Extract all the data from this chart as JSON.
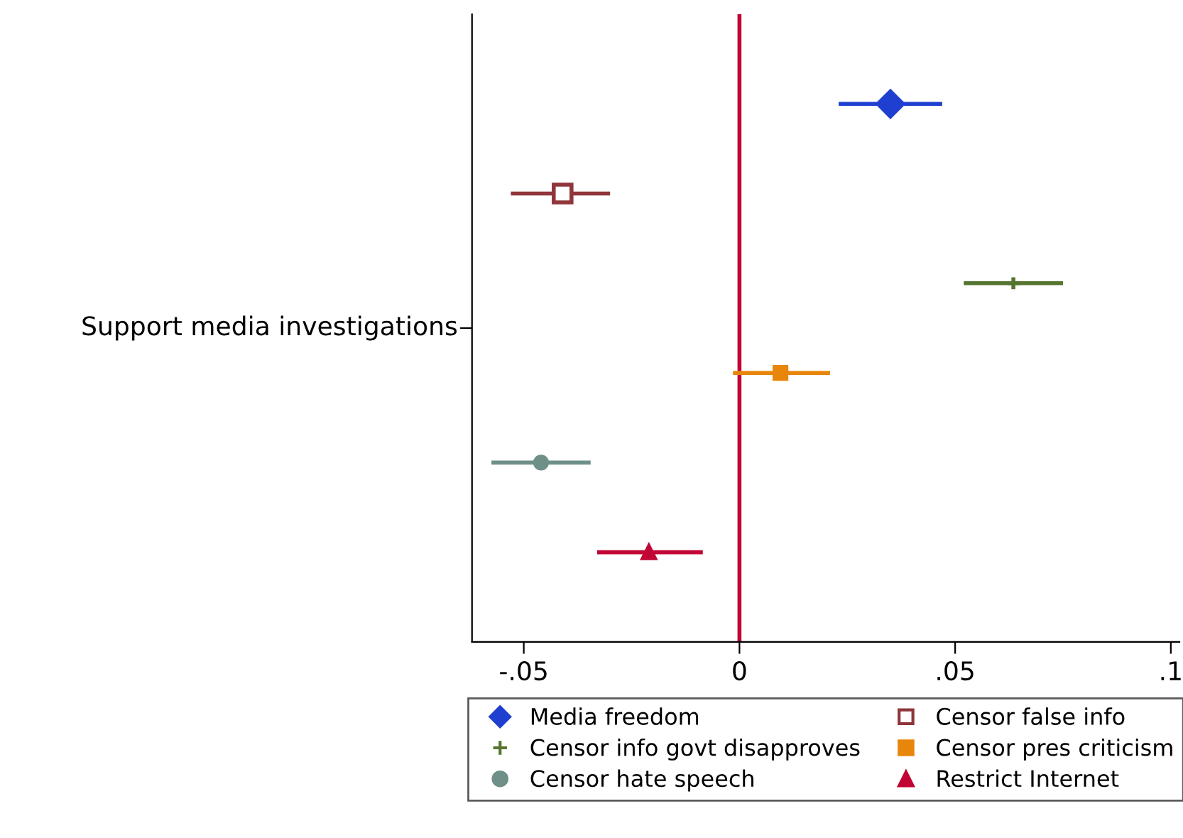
{
  "chart_data": {
    "type": "scatter",
    "orientation": "horizontal",
    "categories": [
      null,
      null,
      null,
      null,
      null,
      null
    ],
    "ylabel": "Support media investigations",
    "series": [
      {
        "name": "Media freedom",
        "color": "#1f3fd0",
        "marker": "diamond",
        "values": [
          0.035,
          null,
          null,
          null,
          null,
          null
        ],
        "errors": [
          [
            0.023,
            0.047
          ],
          null,
          null,
          null,
          null,
          null
        ]
      },
      {
        "name": "Censor false info",
        "color": "#90353b",
        "marker": "square",
        "values": [
          null,
          -0.041,
          null,
          null,
          null,
          null
        ],
        "errors": [
          null,
          [
            -0.053,
            -0.03
          ],
          null,
          null,
          null,
          null
        ]
      },
      {
        "name": "Censor info govt disapproves",
        "color": "#55752f",
        "marker": "cross",
        "values": [
          null,
          null,
          0.0635,
          null,
          null,
          null
        ],
        "errors": [
          null,
          null,
          [
            0.052,
            0.075
          ],
          null,
          null,
          null
        ]
      },
      {
        "name": "Censor pres criticism",
        "color": "#e8860c",
        "marker": "square",
        "values": [
          null,
          null,
          null,
          0.0095,
          null,
          null
        ],
        "errors": [
          null,
          null,
          null,
          [
            -0.0015,
            0.021
          ],
          null,
          null
        ]
      },
      {
        "name": "Censor hate speech",
        "color": "#6f8f89",
        "marker": "circle",
        "values": [
          null,
          null,
          null,
          null,
          -0.046,
          null
        ],
        "errors": [
          null,
          null,
          null,
          null,
          [
            -0.0575,
            -0.0345
          ],
          null
        ]
      },
      {
        "name": "Restrict Internet",
        "color": "#c10534",
        "marker": "triangle",
        "values": [
          null,
          null,
          null,
          null,
          null,
          -0.021
        ],
        "errors": [
          null,
          null,
          null,
          null,
          null,
          [
            -0.033,
            -0.0085
          ]
        ]
      }
    ],
    "xlim": [
      -0.062,
      0.102
    ],
    "xticks": [
      {
        "value": -0.05,
        "label": "-.05"
      },
      0,
      {
        "value": 0.05,
        "label": ".05"
      },
      {
        "value": 0.1,
        "label": ".1"
      }
    ],
    "ref_lines": [
      {
        "axis": "x",
        "value": 0,
        "color": "#c10534",
        "line_style": "solid"
      }
    ],
    "legend": "bottom",
    "grid": false
  }
}
